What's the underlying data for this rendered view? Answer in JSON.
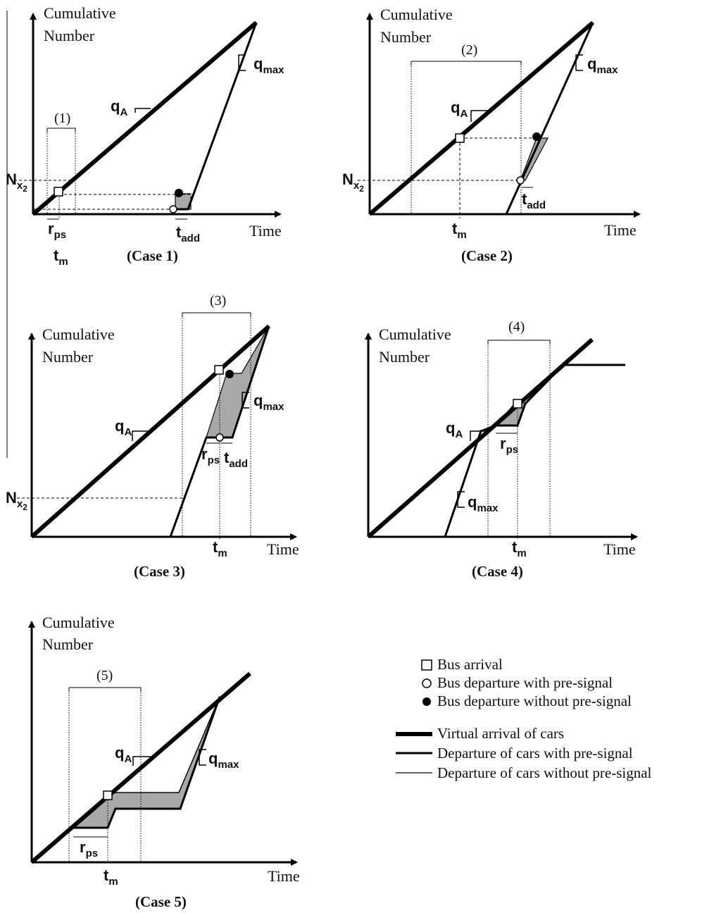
{
  "axis_labels": {
    "y_line1": "Cumulative",
    "y_line2": "Number",
    "x": "Time"
  },
  "symbols": {
    "q_max": "q",
    "q_max_sub": "max",
    "q_A": "q",
    "q_A_sub": "A",
    "N_x2": "N",
    "N_x2_sub": "x",
    "N_x2_subsub": "2",
    "t_m": "t",
    "t_m_sub": "m",
    "r_ps": "r",
    "r_ps_sub": "ps",
    "t_add": "t",
    "t_add_sub": "add"
  },
  "cases": [
    {
      "caption": "(Case 1)",
      "interval": "(1)"
    },
    {
      "caption": "(Case 2)",
      "interval": "(2)"
    },
    {
      "caption": "(Case 3)",
      "interval": "(3)"
    },
    {
      "caption": "(Case 4)",
      "interval": "(4)"
    },
    {
      "caption": "(Case 5)",
      "interval": "(5)"
    }
  ],
  "legend": {
    "bus_arrival": "Bus arrival",
    "bus_departure_with": "Bus departure with pre-signal",
    "bus_departure_without": "Bus departure without pre-signal",
    "virtual_arrival": "Virtual arrival of cars",
    "departure_with": "Departure of cars with pre-signal",
    "departure_without": "Departure of cars without pre-signal"
  }
}
